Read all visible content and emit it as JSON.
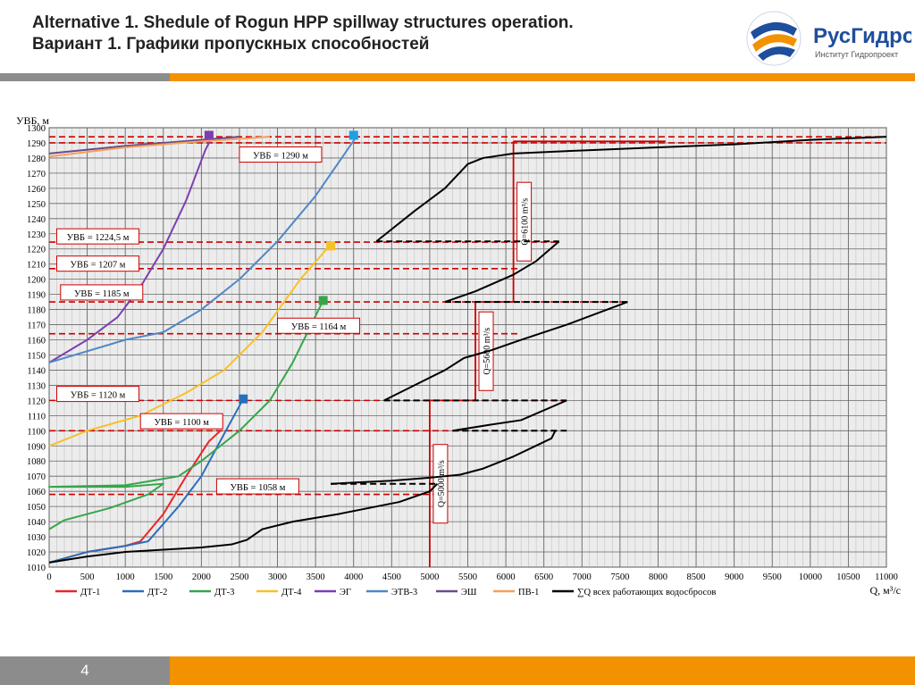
{
  "header": {
    "title_en": "Alternative 1. Shedule of Rogun HPP spillway structures operation.",
    "title_ru": "Вариант 1. Графики пропускных способностей"
  },
  "logo": {
    "name": "РусГидро",
    "subtitle": "Институт Гидропроект",
    "icon": "rushydro-globe-icon"
  },
  "footer": {
    "page": "4"
  },
  "colors": {
    "orange": "#f39200",
    "grey": "#8c8c8c",
    "dt1": "#e8262a",
    "dt2": "#2a6ebb",
    "dt3": "#35a64a",
    "dt4": "#f7c125",
    "eg": "#7b3fb0",
    "etv3": "#4f88c6",
    "esh": "#6a4b8a",
    "pv1": "#f5a15a",
    "sum": "#000000",
    "level": "#cc0000"
  },
  "chart_data": {
    "type": "line",
    "xlabel": "Q, м³/с",
    "ylabel": "УВБ, м",
    "xlim": [
      0,
      11000
    ],
    "ylim": [
      1010,
      1300
    ],
    "x_ticks": [
      0,
      500,
      1000,
      1500,
      2000,
      2500,
      3000,
      3500,
      4000,
      4500,
      5000,
      5500,
      6000,
      6500,
      7000,
      7500,
      8000,
      8500,
      9000,
      9500,
      10000,
      10500,
      11000
    ],
    "y_ticks": [
      1010,
      1020,
      1030,
      1040,
      1050,
      1060,
      1070,
      1080,
      1090,
      1100,
      1110,
      1120,
      1130,
      1140,
      1150,
      1160,
      1170,
      1180,
      1190,
      1200,
      1210,
      1220,
      1230,
      1240,
      1250,
      1260,
      1270,
      1280,
      1290,
      1300
    ],
    "grid": true,
    "legend_position": "bottom",
    "series": [
      {
        "name": "ДТ-1",
        "color": "#e8262a",
        "points": [
          [
            0,
            1013
          ],
          [
            500,
            1020
          ],
          [
            1000,
            1024
          ],
          [
            1200,
            1027
          ],
          [
            1500,
            1045
          ],
          [
            1800,
            1070
          ],
          [
            2100,
            1093
          ],
          [
            2250,
            1100
          ]
        ]
      },
      {
        "name": "ДТ-2",
        "color": "#2a6ebb",
        "points": [
          [
            0,
            1013
          ],
          [
            500,
            1020
          ],
          [
            1000,
            1024
          ],
          [
            1300,
            1027
          ],
          [
            1700,
            1050
          ],
          [
            2000,
            1070
          ],
          [
            2300,
            1098
          ],
          [
            2550,
            1121
          ]
        ]
      },
      {
        "name": "ДТ-3",
        "color": "#35a64a",
        "points": [
          [
            0,
            1035
          ],
          [
            200,
            1041
          ],
          [
            800,
            1049
          ],
          [
            1300,
            1058
          ],
          [
            1500,
            1065
          ],
          [
            1000,
            1063
          ],
          [
            0,
            1063
          ],
          [
            1000,
            1064
          ],
          [
            1700,
            1070
          ],
          [
            2000,
            1080
          ],
          [
            2500,
            1100
          ],
          [
            2900,
            1120
          ],
          [
            3200,
            1145
          ],
          [
            3600,
            1186
          ]
        ]
      },
      {
        "name": "ДТ-4",
        "color": "#f7c125",
        "points": [
          [
            0,
            1090
          ],
          [
            500,
            1100
          ],
          [
            1200,
            1110
          ],
          [
            1800,
            1125
          ],
          [
            2300,
            1140
          ],
          [
            2800,
            1165
          ],
          [
            3300,
            1200
          ],
          [
            3700,
            1223
          ]
        ]
      },
      {
        "name": "ЭГ",
        "color": "#7b3fb0",
        "points": [
          [
            0,
            1145
          ],
          [
            500,
            1160
          ],
          [
            900,
            1175
          ],
          [
            1200,
            1195
          ],
          [
            1500,
            1220
          ],
          [
            1800,
            1252
          ],
          [
            2050,
            1285
          ],
          [
            2150,
            1295
          ]
        ]
      },
      {
        "name": "ЭТВ-3",
        "color": "#4f88c6",
        "points": [
          [
            0,
            1145
          ],
          [
            1000,
            1160
          ],
          [
            1500,
            1165
          ],
          [
            2000,
            1180
          ],
          [
            2500,
            1200
          ],
          [
            3000,
            1225
          ],
          [
            3500,
            1255
          ],
          [
            4050,
            1295
          ]
        ]
      },
      {
        "name": "ЭШ",
        "color": "#6a4b8a",
        "points": [
          [
            0,
            1283
          ],
          [
            1000,
            1288
          ],
          [
            2000,
            1292
          ],
          [
            2500,
            1294
          ]
        ]
      },
      {
        "name": "ПВ-1",
        "color": "#f5a15a",
        "points": [
          [
            0,
            1281
          ],
          [
            1000,
            1287
          ],
          [
            2000,
            1291
          ],
          [
            2900,
            1294
          ]
        ]
      },
      {
        "name": "∑Q всех работающих водосбросов",
        "color": "#000000",
        "points": [
          [
            0,
            1013
          ],
          [
            500,
            1017
          ],
          [
            1000,
            1020
          ],
          [
            2000,
            1023
          ],
          [
            2400,
            1025
          ],
          [
            2600,
            1028
          ],
          [
            2800,
            1035
          ],
          [
            3200,
            1040
          ],
          [
            3800,
            1045
          ],
          [
            4600,
            1053
          ],
          [
            5000,
            1060
          ],
          [
            5100,
            1065
          ]
        ]
      }
    ],
    "step_segments": [
      {
        "color": "#000000",
        "solid": [
          [
            3700,
            1065
          ],
          [
            4500,
            1067
          ],
          [
            5000,
            1069
          ],
          [
            5400,
            1071
          ],
          [
            5700,
            1075
          ],
          [
            6100,
            1083
          ],
          [
            6600,
            1095
          ],
          [
            6650,
            1100
          ]
        ],
        "dashed": [
          [
            3700,
            1065
          ],
          [
            5100,
            1065
          ]
        ]
      },
      {
        "color": "#000000",
        "solid": [
          [
            5300,
            1100
          ],
          [
            5800,
            1104
          ],
          [
            6200,
            1107
          ],
          [
            6800,
            1120
          ]
        ],
        "dashed": [
          [
            5300,
            1100
          ],
          [
            6800,
            1100
          ]
        ]
      },
      {
        "color": "#000000",
        "solid": [
          [
            4400,
            1120
          ],
          [
            4800,
            1130
          ],
          [
            5200,
            1140
          ],
          [
            5450,
            1148
          ],
          [
            5800,
            1153
          ],
          [
            6200,
            1160
          ],
          [
            6800,
            1170
          ],
          [
            7600,
            1185
          ]
        ],
        "dashed": [
          [
            4400,
            1120
          ],
          [
            6800,
            1120
          ]
        ]
      },
      {
        "color": "#000000",
        "solid": [
          [
            5200,
            1185
          ],
          [
            5600,
            1192
          ],
          [
            6100,
            1203
          ],
          [
            6400,
            1212
          ],
          [
            6700,
            1225
          ]
        ],
        "dashed": [
          [
            5200,
            1185
          ],
          [
            7600,
            1185
          ]
        ]
      },
      {
        "color": "#000000",
        "solid": [
          [
            4300,
            1225
          ],
          [
            4800,
            1245
          ],
          [
            5200,
            1260
          ],
          [
            5500,
            1276
          ],
          [
            5700,
            1280
          ],
          [
            6100,
            1283
          ],
          [
            7000,
            1285
          ],
          [
            8000,
            1287
          ],
          [
            9000,
            1289
          ],
          [
            10000,
            1292
          ],
          [
            11000,
            1294
          ]
        ],
        "dashed": [
          [
            4300,
            1225
          ],
          [
            6700,
            1225
          ]
        ]
      }
    ],
    "level_lines": [
      {
        "label": "УВБ = 1290 м",
        "y": 1290,
        "x_end": 11000
      },
      {
        "label": "",
        "y": 1294,
        "x_end": 11000
      },
      {
        "label": "УВБ = 1224,5 м",
        "y": 1224.5,
        "x_end": 6700
      },
      {
        "label": "УВБ = 1207 м",
        "y": 1207,
        "x_end": 6200
      },
      {
        "label": "УВБ = 1185 м",
        "y": 1185,
        "x_end": 7600
      },
      {
        "label": "УВБ = 1164 м",
        "y": 1164,
        "x_end": 6200
      },
      {
        "label": "УВБ = 1120 м",
        "y": 1120,
        "x_end": 6800
      },
      {
        "label": "УВБ = 1100 м",
        "y": 1100,
        "x_end": 6700
      },
      {
        "label": "УВБ = 1058 м",
        "y": 1058,
        "x_end": 5200
      }
    ],
    "discharge_lines": [
      {
        "label": "Q=6100 m³/s",
        "x": 6100,
        "y_from": 1185,
        "y_to": 1291,
        "x_from_top": 8100
      },
      {
        "label": "Q=5600 m³/s",
        "x": 5600,
        "y_from": 1120,
        "y_to": 1185,
        "x_from_top": 6100
      },
      {
        "label": "Q=5000 m³/s",
        "x": 5000,
        "y_from": 1010,
        "y_to": 1120,
        "x_from_top": 5600
      }
    ],
    "end_markers": [
      {
        "series": "ЭГ",
        "x": 2100,
        "y": 1295,
        "color": "#7b3fb0"
      },
      {
        "series": "ЭТВ-3",
        "x": 4000,
        "y": 1295,
        "color": "#1ea0e0"
      },
      {
        "series": "ДТ-4",
        "x": 3700,
        "y": 1222,
        "color": "#f7c125"
      },
      {
        "series": "ДТ-3",
        "x": 3600,
        "y": 1186,
        "color": "#35a64a"
      },
      {
        "series": "ДТ-2",
        "x": 2550,
        "y": 1121,
        "color": "#2a6ebb"
      }
    ]
  }
}
